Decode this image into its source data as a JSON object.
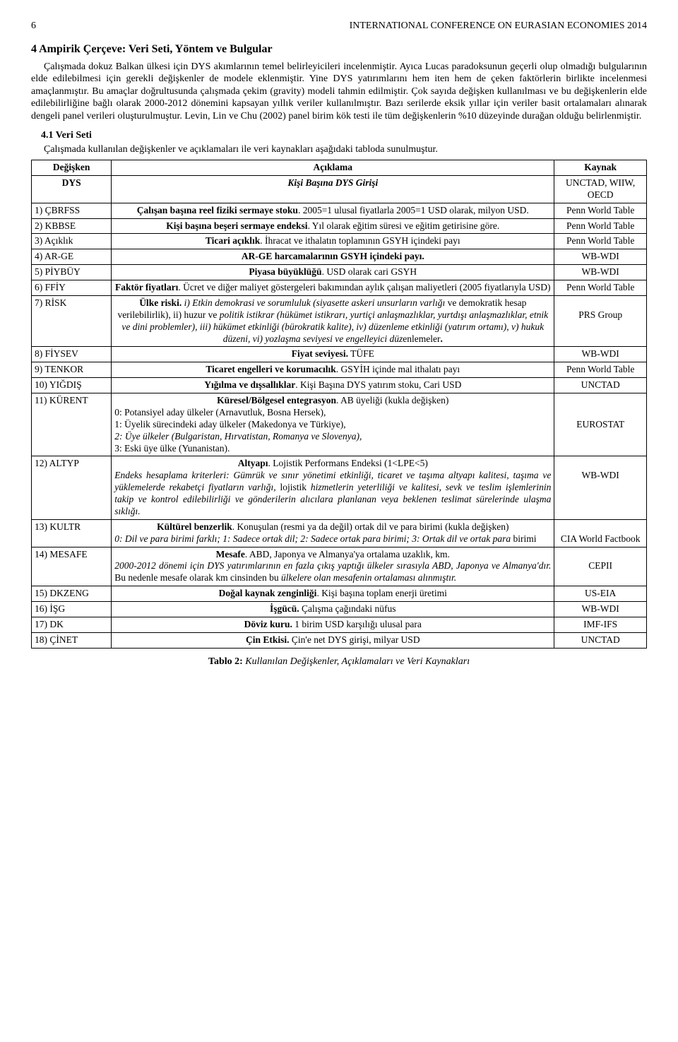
{
  "header": {
    "page_number": "6",
    "running_title": "INTERNATIONAL CONFERENCE ON EURASIAN ECONOMIES 2014"
  },
  "section": {
    "title": "4  Ampirik Çerçeve: Veri Seti, Yöntem ve Bulgular",
    "paragraph": "Çalışmada dokuz Balkan ülkesi için DYS akımlarının temel belirleyicileri incelenmiştir. Ayıca Lucas paradoksunun geçerli olup olmadığı bulgularının elde edilebilmesi için gerekli değişkenler de modele eklenmiştir. Yine DYS yatırımlarını hem iten hem de çeken faktörlerin birlikte incelenmesi amaçlanmıştır. Bu amaçlar doğrultusunda çalışmada çekim (gravity) modeli tahmin edilmiştir. Çok sayıda değişken kullanılması ve bu değişkenlerin elde edilebilirliğine bağlı olarak 2000-2012 dönemini kapsayan yıllık veriler kullanılmıştır. Bazı serilerde eksik yıllar için veriler basit ortalamaları alınarak dengeli panel verileri oluşturulmuştur. Levin, Lin ve Chu (2002) panel birim kök testi ile tüm değişkenlerin %10 düzeyinde durağan olduğu belirlenmiştir."
  },
  "subsection": {
    "title": "4.1 Veri Seti",
    "paragraph": "Çalışmada kullanılan değişkenler ve açıklamaları ile veri kaynakları aşağıdaki tabloda sunulmuştur."
  },
  "table": {
    "headers": {
      "col1": "Değişken",
      "col2": "Açıklama",
      "col3": "Kaynak"
    },
    "caption_label": "Tablo 2:",
    "caption_text": "Kullanılan Değişkenler, Açıklamaları ve Veri Kaynakları"
  }
}
